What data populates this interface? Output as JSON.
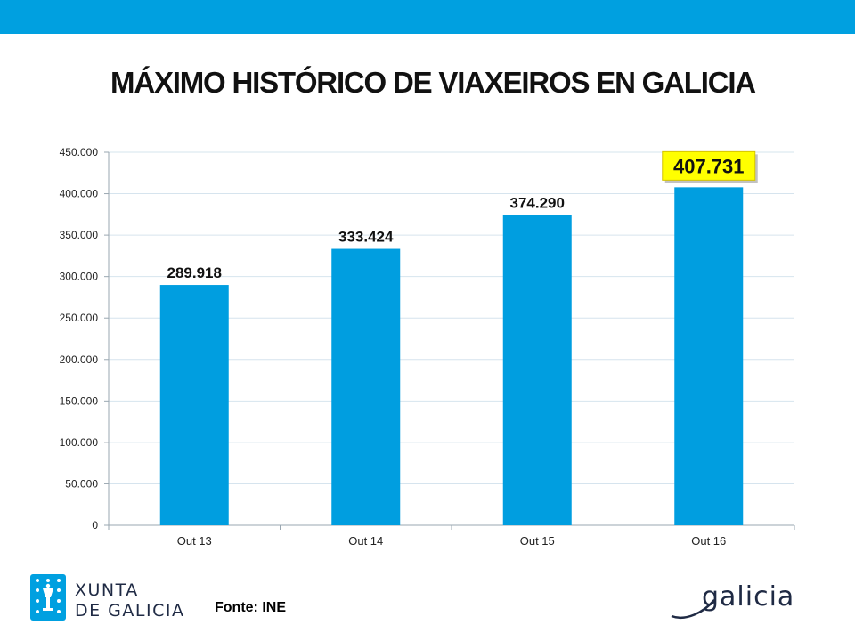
{
  "header": {
    "bar_color": "#00A0E0",
    "title": "MÁXIMO HISTÓRICO DE VIAXEIROS EN GALICIA"
  },
  "chart_data": {
    "type": "bar",
    "title": "MÁXIMO HISTÓRICO DE VIAXEIROS EN GALICIA",
    "xlabel": "",
    "ylabel": "",
    "categories": [
      "Out 13",
      "Out 14",
      "Out 15",
      "Out 16"
    ],
    "values": [
      289918,
      333424,
      374290,
      407731
    ],
    "data_labels": [
      "289.918",
      "333.424",
      "374.290",
      "407.731"
    ],
    "highlighted_label_index": 3,
    "ylim": [
      0,
      450000
    ],
    "y_ticks": [
      0,
      50000,
      100000,
      150000,
      200000,
      250000,
      300000,
      350000,
      400000,
      450000
    ],
    "y_tick_labels": [
      "0",
      "50.000",
      "100.000",
      "150.000",
      "200.000",
      "250.000",
      "300.000",
      "350.000",
      "400.000",
      "450.000"
    ],
    "grid": true,
    "legend": "none",
    "bar_color": "#009EE0",
    "highlight_color": "#FFFF00"
  },
  "footer": {
    "source": "Fonte: INE",
    "logo_left_line1": "XUNTA",
    "logo_left_line2": "DE GALICIA",
    "logo_right": "galicia",
    "logo_color": "#00A0E0"
  }
}
